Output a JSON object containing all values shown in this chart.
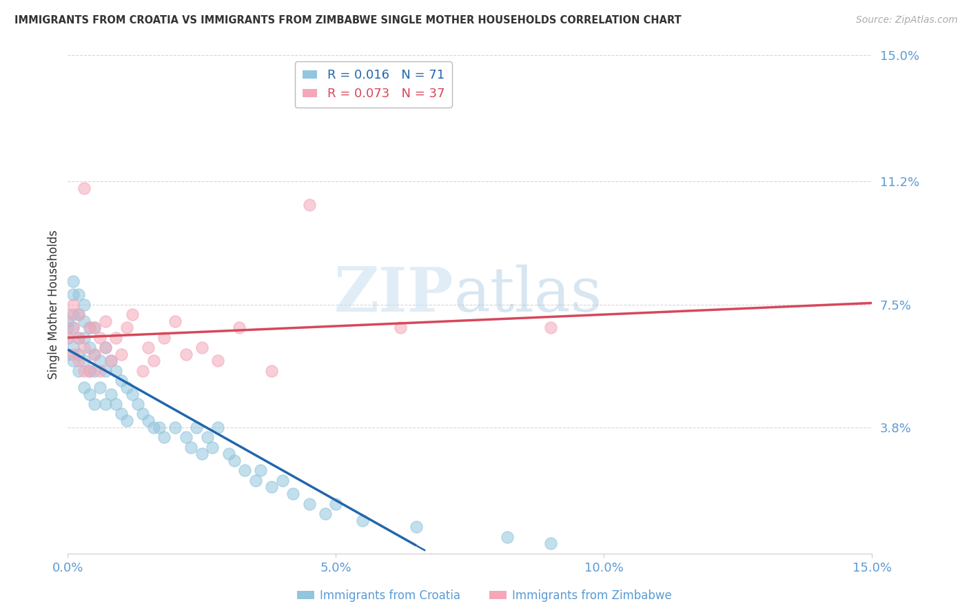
{
  "title": "IMMIGRANTS FROM CROATIA VS IMMIGRANTS FROM ZIMBABWE SINGLE MOTHER HOUSEHOLDS CORRELATION CHART",
  "source": "Source: ZipAtlas.com",
  "ylabel": "Single Mother Households",
  "xlim": [
    0.0,
    0.15
  ],
  "ylim": [
    0.0,
    0.15
  ],
  "yticks": [
    0.038,
    0.075,
    0.112,
    0.15
  ],
  "ytick_labels": [
    "3.8%",
    "7.5%",
    "11.2%",
    "15.0%"
  ],
  "xticks": [
    0.0,
    0.05,
    0.1,
    0.15
  ],
  "xtick_labels": [
    "0.0%",
    "5.0%",
    "10.0%",
    "15.0%"
  ],
  "croatia_color": "#92c5de",
  "zimbabwe_color": "#f4a7b9",
  "croatia_line_color": "#2166ac",
  "zimbabwe_line_color": "#d6485a",
  "legend_R_croatia": "R = 0.016",
  "legend_N_croatia": "N = 71",
  "legend_R_zimbabwe": "R = 0.073",
  "legend_N_zimbabwe": "N = 37",
  "watermark_zip": "ZIP",
  "watermark_atlas": "atlas",
  "croatia_x": [
    0.0,
    0.0,
    0.0,
    0.0,
    0.001,
    0.001,
    0.001,
    0.001,
    0.001,
    0.001,
    0.002,
    0.002,
    0.002,
    0.002,
    0.002,
    0.003,
    0.003,
    0.003,
    0.003,
    0.003,
    0.004,
    0.004,
    0.004,
    0.004,
    0.005,
    0.005,
    0.005,
    0.005,
    0.006,
    0.006,
    0.007,
    0.007,
    0.007,
    0.008,
    0.008,
    0.009,
    0.009,
    0.01,
    0.01,
    0.011,
    0.011,
    0.012,
    0.013,
    0.014,
    0.015,
    0.016,
    0.017,
    0.018,
    0.02,
    0.022,
    0.023,
    0.024,
    0.025,
    0.026,
    0.027,
    0.028,
    0.03,
    0.031,
    0.033,
    0.035,
    0.036,
    0.038,
    0.04,
    0.042,
    0.045,
    0.048,
    0.05,
    0.055,
    0.065,
    0.082,
    0.09
  ],
  "croatia_y": [
    0.06,
    0.065,
    0.068,
    0.07,
    0.058,
    0.062,
    0.068,
    0.072,
    0.078,
    0.082,
    0.055,
    0.06,
    0.065,
    0.072,
    0.078,
    0.05,
    0.058,
    0.065,
    0.07,
    0.075,
    0.048,
    0.055,
    0.062,
    0.068,
    0.045,
    0.055,
    0.06,
    0.068,
    0.05,
    0.058,
    0.045,
    0.055,
    0.062,
    0.048,
    0.058,
    0.045,
    0.055,
    0.042,
    0.052,
    0.04,
    0.05,
    0.048,
    0.045,
    0.042,
    0.04,
    0.038,
    0.038,
    0.035,
    0.038,
    0.035,
    0.032,
    0.038,
    0.03,
    0.035,
    0.032,
    0.038,
    0.03,
    0.028,
    0.025,
    0.022,
    0.025,
    0.02,
    0.022,
    0.018,
    0.015,
    0.012,
    0.015,
    0.01,
    0.008,
    0.005,
    0.003
  ],
  "zimbabwe_x": [
    0.0,
    0.0,
    0.001,
    0.001,
    0.001,
    0.002,
    0.002,
    0.002,
    0.003,
    0.003,
    0.003,
    0.004,
    0.004,
    0.005,
    0.005,
    0.006,
    0.006,
    0.007,
    0.007,
    0.008,
    0.009,
    0.01,
    0.011,
    0.012,
    0.014,
    0.015,
    0.016,
    0.018,
    0.02,
    0.022,
    0.025,
    0.028,
    0.032,
    0.038,
    0.045,
    0.062,
    0.09
  ],
  "zimbabwe_y": [
    0.065,
    0.072,
    0.06,
    0.068,
    0.075,
    0.058,
    0.065,
    0.072,
    0.055,
    0.062,
    0.11,
    0.055,
    0.068,
    0.06,
    0.068,
    0.055,
    0.065,
    0.062,
    0.07,
    0.058,
    0.065,
    0.06,
    0.068,
    0.072,
    0.055,
    0.062,
    0.058,
    0.065,
    0.07,
    0.06,
    0.062,
    0.058,
    0.068,
    0.055,
    0.105,
    0.068,
    0.068
  ],
  "grid_color": "#cccccc",
  "background_color": "#ffffff",
  "title_color": "#333333",
  "tick_label_color": "#5b9bd5"
}
